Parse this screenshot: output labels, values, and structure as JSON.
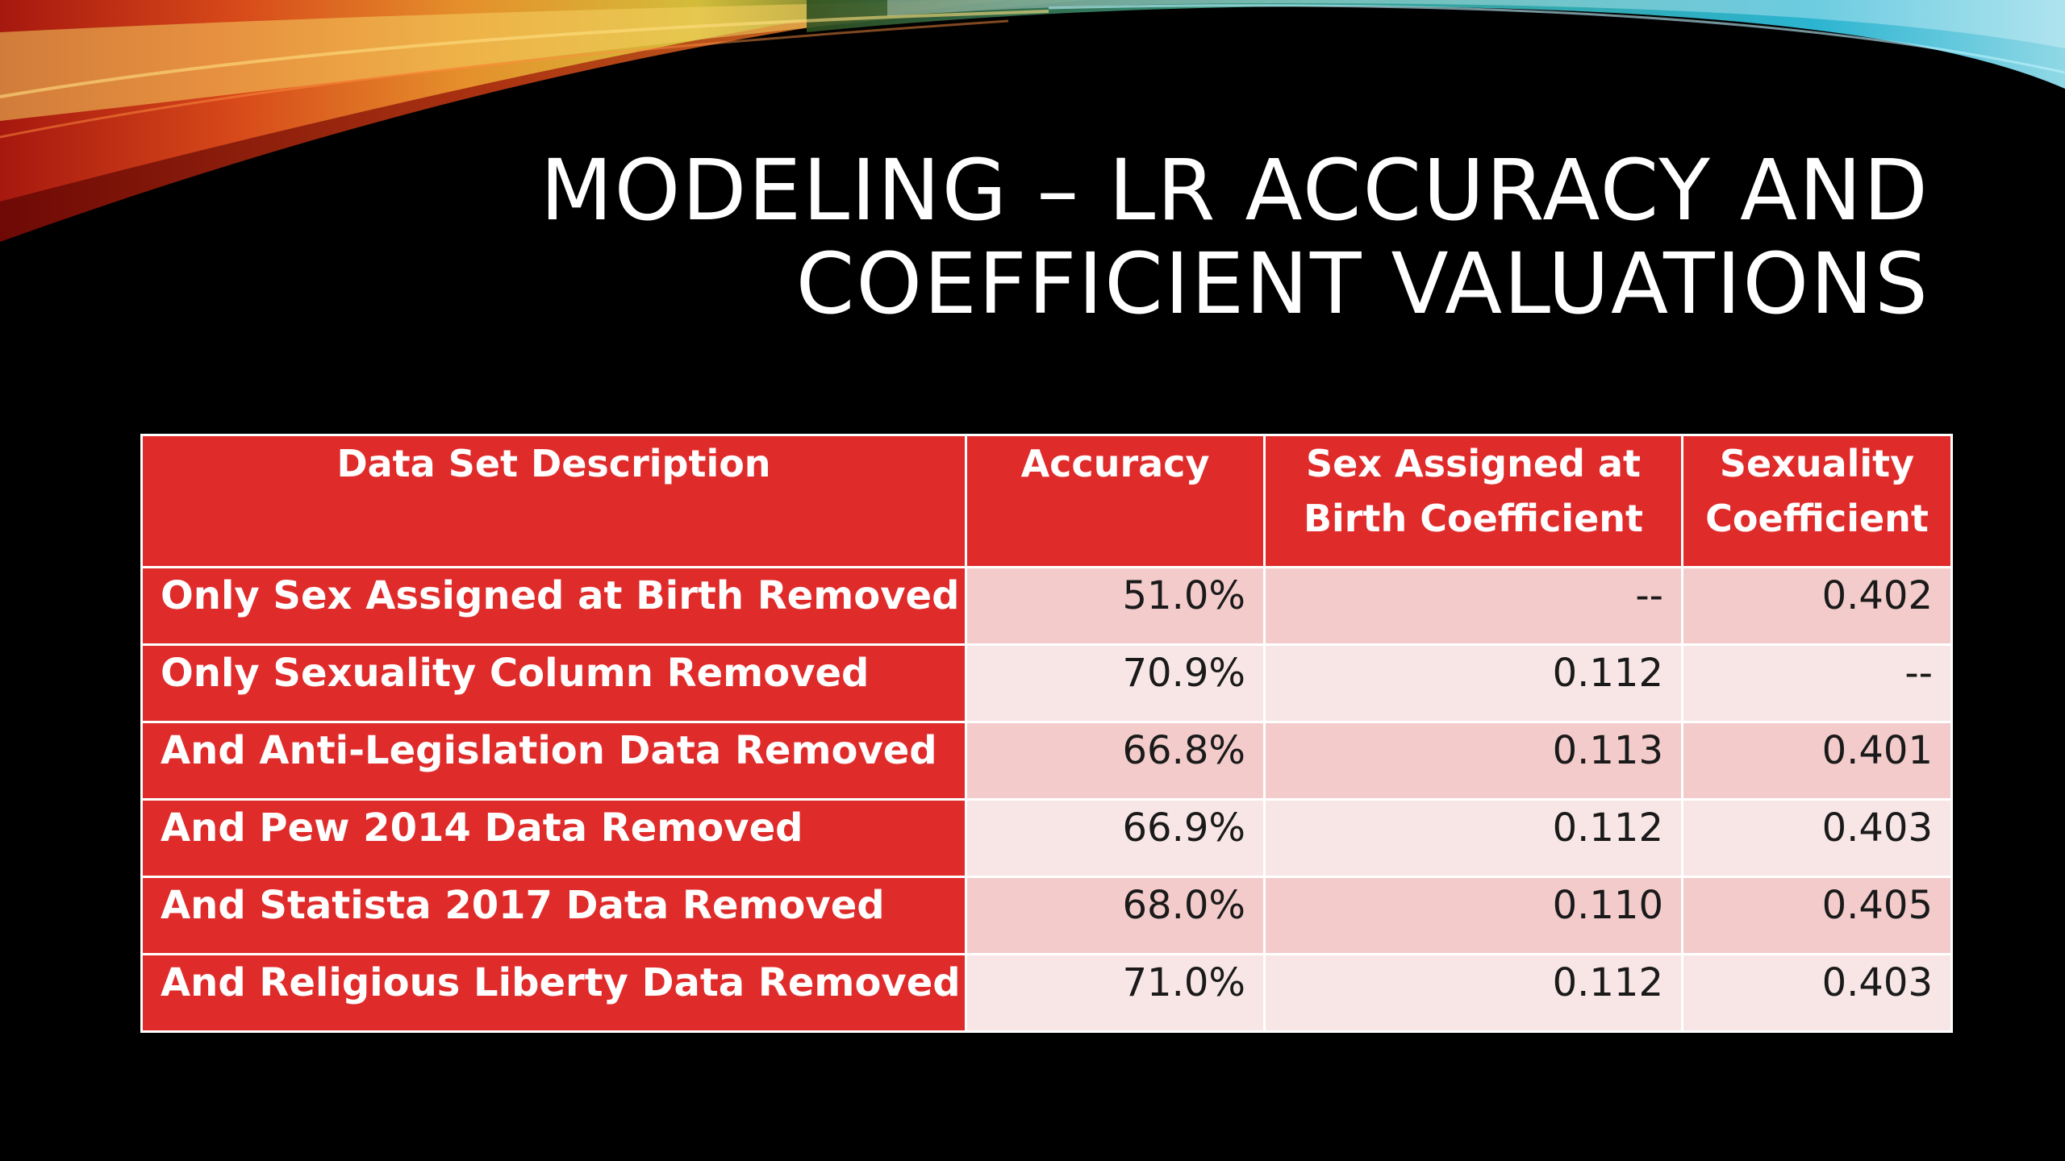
{
  "slide": {
    "title_line1": "MODELING – LR ACCURACY AND",
    "title_line2": "COEFFICIENT VALUATIONS"
  },
  "colors": {
    "background": "#000000",
    "header_red": "#e02b2b",
    "row_shade_dark": "#f3cbcb",
    "row_shade_light": "#f8e6e6"
  },
  "table": {
    "headers": [
      "Data Set Description",
      "Accuracy",
      "Sex Assigned at Birth Coefficient",
      "Sexuality Coefficient"
    ],
    "rows": [
      [
        "Only Sex Assigned at Birth Removed",
        "51.0%",
        "--",
        "0.402"
      ],
      [
        "Only Sexuality Column Removed",
        "70.9%",
        "0.112",
        "--"
      ],
      [
        "And Anti-Legislation Data Removed",
        "66.8%",
        "0.113",
        "0.401"
      ],
      [
        "And Pew 2014 Data Removed",
        "66.9%",
        "0.112",
        "0.403"
      ],
      [
        "And Statista 2017 Data Removed",
        "68.0%",
        "0.110",
        "0.405"
      ],
      [
        "And Religious Liberty Data Removed",
        "71.0%",
        "0.112",
        "0.403"
      ]
    ]
  }
}
